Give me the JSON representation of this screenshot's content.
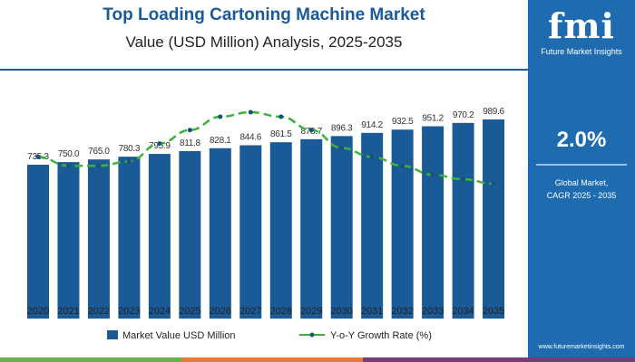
{
  "chart_data": {
    "type": "bar",
    "title": "Top Loading Cartoning Machine Market",
    "subtitle": "Value (USD Million) Analysis, 2025-2035",
    "categories": [
      "2020",
      "2021",
      "2022",
      "2023",
      "2024",
      "2025",
      "2026",
      "2027",
      "2028",
      "2029",
      "2030",
      "2031",
      "2032",
      "2033",
      "2034",
      "2035"
    ],
    "series": [
      {
        "name": "Market Value USD Million",
        "type": "bar",
        "color": "#1a5a96",
        "values": [
          735.3,
          750.0,
          765.0,
          780.3,
          795.9,
          811.8,
          828.1,
          844.6,
          861.5,
          878.7,
          896.3,
          914.2,
          932.5,
          951.2,
          970.2,
          989.6
        ]
      },
      {
        "name": "Y-o-Y Growth Rate (%)",
        "type": "line",
        "color": "#3cb43c",
        "values": [
          1.98,
          1.96,
          1.96,
          1.97,
          2.01,
          2.04,
          2.07,
          2.08,
          2.07,
          2.04,
          2.0,
          1.98,
          1.96,
          1.94,
          1.93,
          1.92
        ]
      }
    ],
    "data_labels": [
      "735.3",
      "750.0",
      "765.0",
      "780.3",
      "795.9",
      "811.8",
      "828.1",
      "844.6",
      "861.5",
      "878.7",
      "896.3",
      "914.2",
      "932.5",
      "951.2",
      "970.2",
      "989.6"
    ],
    "legend_position": "bottom",
    "grid": false
  },
  "side": {
    "logo": "fmi",
    "logo_sub": "Future Market Insights",
    "cagr": "2.0%",
    "cagr_label1": "Global Market,",
    "cagr_label2": "CAGR 2025 - 2035",
    "url": "www.futuremarketinsights.com"
  }
}
